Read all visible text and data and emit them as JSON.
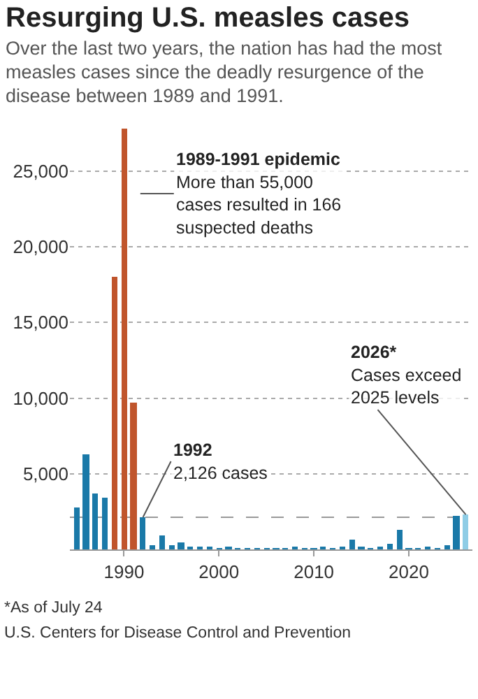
{
  "chart_data": {
    "type": "bar",
    "title": "Resurging U.S. measles cases",
    "subtitle": "Over the last two years, the nation has had the most measles cases since the deadly resurgence of the disease between 1989 and 1991.",
    "x": [
      1985,
      1986,
      1987,
      1988,
      1989,
      1990,
      1991,
      1992,
      1993,
      1994,
      1995,
      1996,
      1997,
      1998,
      1999,
      2000,
      2001,
      2002,
      2003,
      2004,
      2005,
      2006,
      2007,
      2008,
      2009,
      2010,
      2011,
      2012,
      2013,
      2014,
      2015,
      2016,
      2017,
      2018,
      2019,
      2020,
      2021,
      2022,
      2023,
      2024,
      2025,
      2026
    ],
    "values": [
      2800,
      6300,
      3700,
      3400,
      18000,
      27800,
      9700,
      2126,
      300,
      950,
      300,
      500,
      150,
      100,
      100,
      90,
      110,
      40,
      60,
      40,
      70,
      50,
      40,
      140,
      70,
      60,
      220,
      60,
      190,
      670,
      190,
      90,
      120,
      380,
      1270,
      10,
      50,
      120,
      60,
      290,
      2250,
      2300
    ],
    "colors": [
      "#1a79a8",
      "#1a79a8",
      "#1a79a8",
      "#1a79a8",
      "#c0552c",
      "#c0552c",
      "#c0552c",
      "#1a79a8",
      "#1a79a8",
      "#1a79a8",
      "#1a79a8",
      "#1a79a8",
      "#1a79a8",
      "#1a79a8",
      "#1a79a8",
      "#1a79a8",
      "#1a79a8",
      "#1a79a8",
      "#1a79a8",
      "#1a79a8",
      "#1a79a8",
      "#1a79a8",
      "#1a79a8",
      "#1a79a8",
      "#1a79a8",
      "#1a79a8",
      "#1a79a8",
      "#1a79a8",
      "#1a79a8",
      "#1a79a8",
      "#1a79a8",
      "#1a79a8",
      "#1a79a8",
      "#1a79a8",
      "#1a79a8",
      "#1a79a8",
      "#1a79a8",
      "#1a79a8",
      "#1a79a8",
      "#1a79a8",
      "#1a79a8",
      "#8fcde6"
    ],
    "xlim": [
      1984.3,
      2026.7
    ],
    "xticks": [
      1990,
      2000,
      2010,
      2020
    ],
    "ylim": [
      0,
      28000
    ],
    "yticks": [
      {
        "value": 5000,
        "label": "5,000"
      },
      {
        "value": 10000,
        "label": "10,000"
      },
      {
        "value": 15000,
        "label": "15,000"
      },
      {
        "value": 20000,
        "label": "20,000"
      },
      {
        "value": 25000,
        "label": "25,000"
      }
    ],
    "grid": "y",
    "ref_lines": [
      {
        "axis": "y",
        "value": 2126,
        "color": "#999999",
        "line_style": "dashed"
      }
    ],
    "annotations": [
      "1989-1991 epidemic\nMore than 55,000\ncases resulted in 166\nsuspected deaths",
      {
        "text": "1992\n2,126 cases",
        "x": 1992,
        "y": 2126
      },
      {
        "text": "2026*\nCases exceed\n2025 levels",
        "x": 2026,
        "y": 2300
      },
      "*As of July 24",
      "U.S. Centers for Disease Control and Prevention"
    ]
  }
}
